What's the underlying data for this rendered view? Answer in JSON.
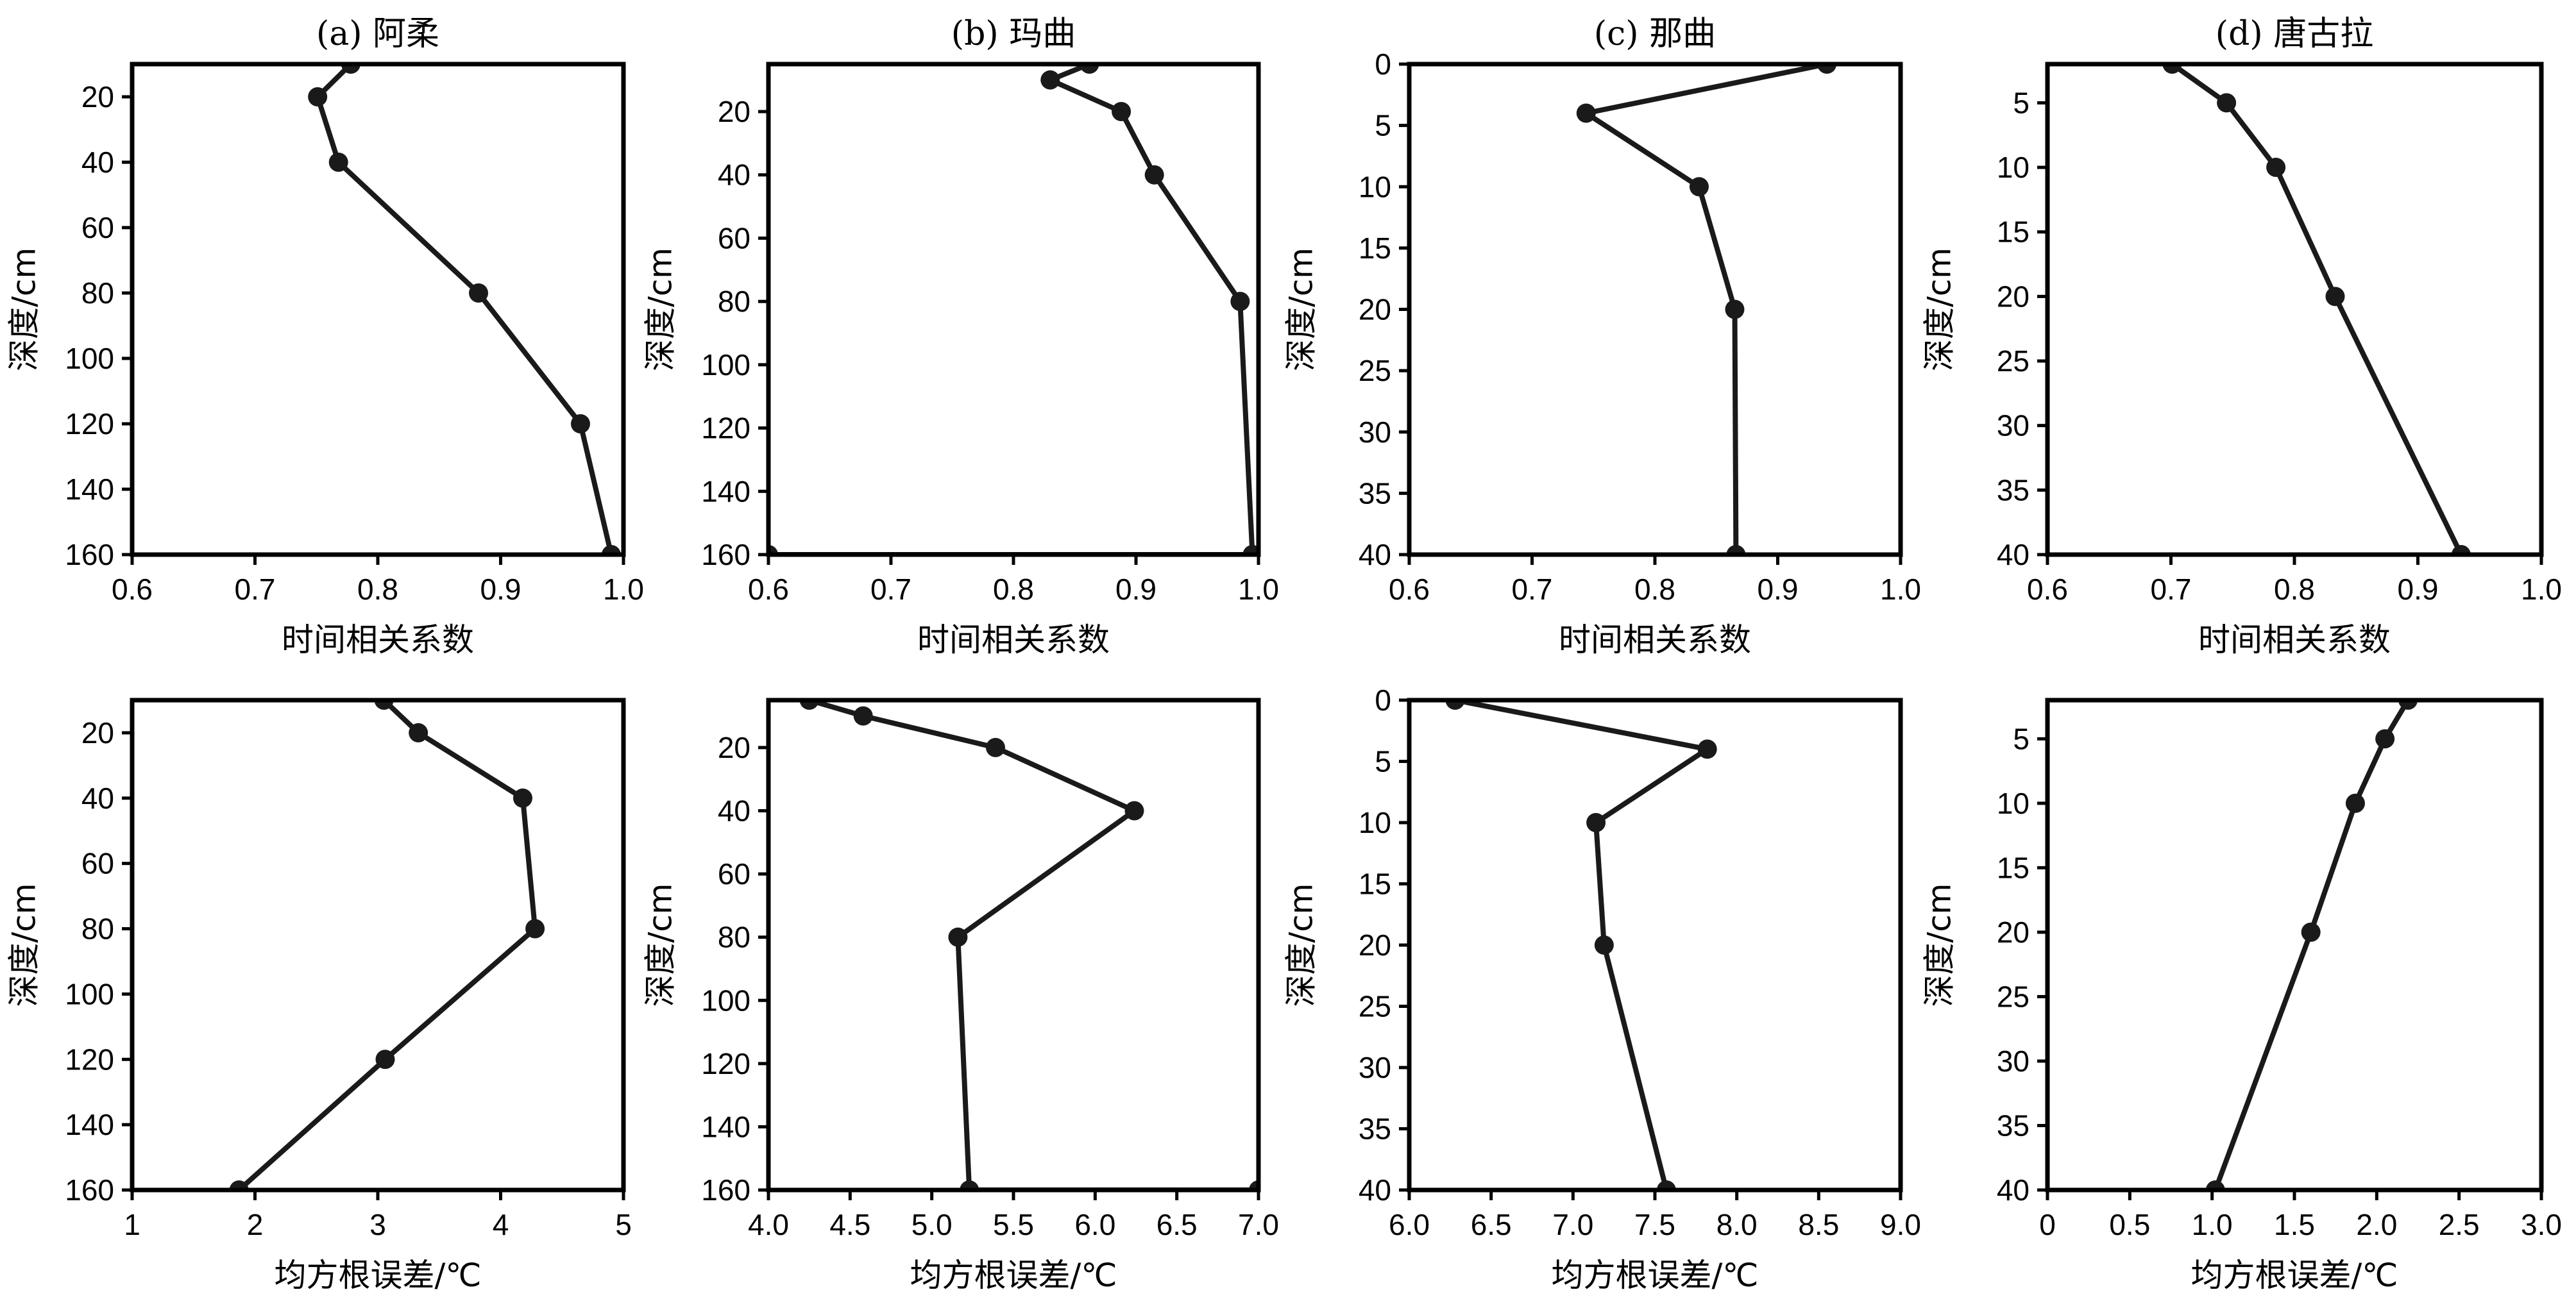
{
  "chart_data": [
    {
      "type": "line",
      "title": "(a) 阿柔",
      "xlabel": "时间相关系数",
      "ylabel": "深度/cm",
      "xlim": [
        0.6,
        1.0
      ],
      "xticks": [
        0.6,
        0.7,
        0.8,
        0.9,
        1.0
      ],
      "xtick_labels": [
        "0.6",
        "0.7",
        "0.8",
        "0.9",
        "1.0"
      ],
      "ylim": [
        160,
        10
      ],
      "yticks": [
        20,
        40,
        60,
        80,
        100,
        120,
        140,
        160
      ],
      "ytick_labels": [
        "20",
        "40",
        "60",
        "80",
        "100",
        "120",
        "140",
        "160"
      ],
      "x": [
        0.778,
        0.751,
        0.768,
        0.882,
        0.965,
        0.99
      ],
      "y": [
        10,
        20,
        40,
        80,
        120,
        160
      ]
    },
    {
      "type": "line",
      "title": "(b) 玛曲",
      "xlabel": "时间相关系数",
      "ylabel": "深度/cm",
      "xlim": [
        0.6,
        1.0
      ],
      "xticks": [
        0.6,
        0.7,
        0.8,
        0.9,
        1.0
      ],
      "xtick_labels": [
        "0.6",
        "0.7",
        "0.8",
        "0.9",
        "1.0"
      ],
      "ylim": [
        160,
        5
      ],
      "yticks": [
        20,
        40,
        60,
        80,
        100,
        120,
        140,
        160
      ],
      "ytick_labels": [
        "20",
        "40",
        "60",
        "80",
        "100",
        "120",
        "140",
        "160"
      ],
      "x": [
        0.862,
        0.83,
        0.888,
        0.915,
        0.985,
        0.995,
        0.6
      ],
      "y": [
        5,
        10,
        20,
        40,
        80,
        160,
        160
      ]
    },
    {
      "type": "line",
      "title": "(c) 那曲",
      "xlabel": "时间相关系数",
      "ylabel": "深度/cm",
      "xlim": [
        0.6,
        1.0
      ],
      "xticks": [
        0.6,
        0.7,
        0.8,
        0.9,
        1.0
      ],
      "xtick_labels": [
        "0.6",
        "0.7",
        "0.8",
        "0.9",
        "1.0"
      ],
      "ylim": [
        40,
        0
      ],
      "yticks": [
        0,
        5,
        10,
        15,
        20,
        25,
        30,
        35,
        40
      ],
      "ytick_labels": [
        "0",
        "5",
        "10",
        "15",
        "20",
        "25",
        "30",
        "35",
        "40"
      ],
      "x": [
        0.94,
        0.744,
        0.836,
        0.865,
        0.866
      ],
      "y": [
        0,
        4,
        10,
        20,
        40
      ]
    },
    {
      "type": "line",
      "title": "(d) 唐古拉",
      "xlabel": "时间相关系数",
      "ylabel": "深度/cm",
      "xlim": [
        0.6,
        1.0
      ],
      "xticks": [
        0.6,
        0.7,
        0.8,
        0.9,
        1.0
      ],
      "xtick_labels": [
        "0.6",
        "0.7",
        "0.8",
        "0.9",
        "1.0"
      ],
      "ylim": [
        40,
        2
      ],
      "yticks": [
        5,
        10,
        15,
        20,
        25,
        30,
        35,
        40
      ],
      "ytick_labels": [
        "5",
        "10",
        "15",
        "20",
        "25",
        "30",
        "35",
        "40"
      ],
      "x": [
        0.701,
        0.745,
        0.785,
        0.833,
        0.935
      ],
      "y": [
        2,
        5,
        10,
        20,
        40
      ]
    },
    {
      "type": "line",
      "title": "",
      "xlabel": "均方根误差/℃",
      "ylabel": "深度/cm",
      "xlim": [
        1,
        5
      ],
      "xticks": [
        1,
        2,
        3,
        4,
        5
      ],
      "xtick_labels": [
        "1",
        "2",
        "3",
        "4",
        "5"
      ],
      "ylim": [
        160,
        10
      ],
      "yticks": [
        20,
        40,
        60,
        80,
        100,
        120,
        140,
        160
      ],
      "ytick_labels": [
        "20",
        "40",
        "60",
        "80",
        "100",
        "120",
        "140",
        "160"
      ],
      "x": [
        3.05,
        3.33,
        4.18,
        4.28,
        3.06,
        1.87
      ],
      "y": [
        10,
        20,
        40,
        80,
        120,
        160
      ]
    },
    {
      "type": "line",
      "title": "",
      "xlabel": "均方根误差/℃",
      "ylabel": "深度/cm",
      "xlim": [
        4.0,
        7.0
      ],
      "xticks": [
        4.0,
        4.5,
        5.0,
        5.5,
        6.0,
        6.5,
        7.0
      ],
      "xtick_labels": [
        "4.0",
        "4.5",
        "5.0",
        "5.5",
        "6.0",
        "6.5",
        "7.0"
      ],
      "ylim": [
        160,
        5
      ],
      "yticks": [
        20,
        40,
        60,
        80,
        100,
        120,
        140,
        160
      ],
      "ytick_labels": [
        "20",
        "40",
        "60",
        "80",
        "100",
        "120",
        "140",
        "160"
      ],
      "x": [
        4.25,
        4.58,
        5.39,
        6.24,
        5.16,
        5.23,
        7.0
      ],
      "y": [
        5,
        10,
        20,
        40,
        80,
        160,
        160
      ]
    },
    {
      "type": "line",
      "title": "",
      "xlabel": "均方根误差/℃",
      "ylabel": "深度/cm",
      "xlim": [
        6.0,
        9.0
      ],
      "xticks": [
        6.0,
        6.5,
        7.0,
        7.5,
        8.0,
        8.5,
        9.0
      ],
      "xtick_labels": [
        "6.0",
        "6.5",
        "7.0",
        "7.5",
        "8.0",
        "8.5",
        "9.0"
      ],
      "ylim": [
        40,
        0
      ],
      "yticks": [
        0,
        5,
        10,
        15,
        20,
        25,
        30,
        35,
        40
      ],
      "ytick_labels": [
        "0",
        "5",
        "10",
        "15",
        "20",
        "25",
        "30",
        "35",
        "40"
      ],
      "x": [
        6.28,
        7.82,
        7.14,
        7.19,
        7.57
      ],
      "y": [
        0,
        4,
        10,
        20,
        40
      ]
    },
    {
      "type": "line",
      "title": "",
      "xlabel": "均方根误差/℃",
      "ylabel": "深度/cm",
      "xlim": [
        0,
        3.0
      ],
      "xticks": [
        0,
        0.5,
        1.0,
        1.5,
        2.0,
        2.5,
        3.0
      ],
      "xtick_labels": [
        "0",
        "0.5",
        "1.0",
        "1.5",
        "2.0",
        "2.5",
        "3.0"
      ],
      "ylim": [
        40,
        2
      ],
      "yticks": [
        5,
        10,
        15,
        20,
        25,
        30,
        35,
        40
      ],
      "ytick_labels": [
        "5",
        "10",
        "15",
        "20",
        "25",
        "30",
        "35",
        "40"
      ],
      "x": [
        2.19,
        2.05,
        1.87,
        1.6,
        1.02
      ],
      "y": [
        2,
        5,
        10,
        20,
        40
      ]
    }
  ]
}
